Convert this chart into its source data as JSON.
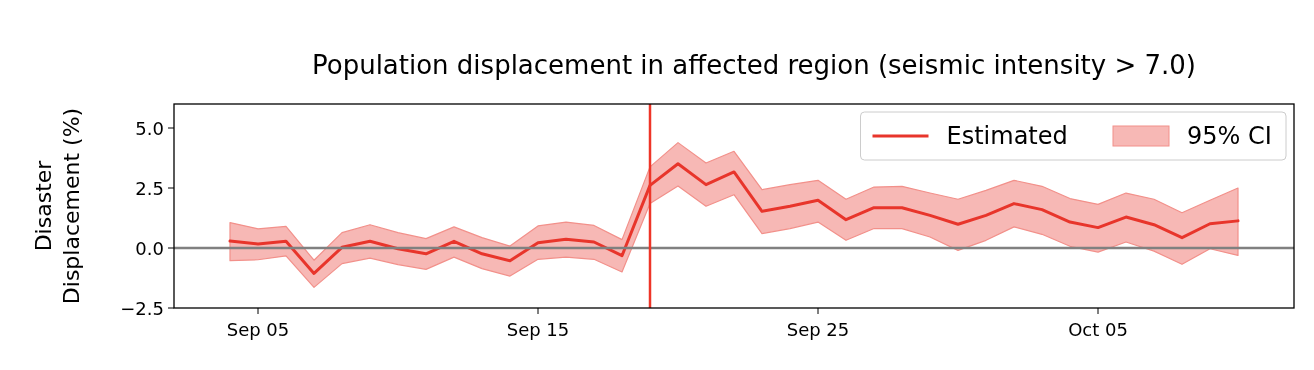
{
  "chart_data": {
    "type": "line",
    "title": "Population displacement in affected region (seismic intensity > 7.0)",
    "ylabel": "Disaster\nDisplacement (%)",
    "x": [
      "--09-04",
      "--09-05",
      "--09-06",
      "--09-07",
      "--09-08",
      "--09-09",
      "--09-10",
      "--09-11",
      "--09-12",
      "--09-13",
      "--09-14",
      "--09-15",
      "--09-16",
      "--09-17",
      "--09-18",
      "--09-19",
      "--09-20",
      "--09-21",
      "--09-22",
      "--09-23",
      "--09-24",
      "--09-25",
      "--09-26",
      "--09-27",
      "--09-28",
      "--09-29",
      "--09-30",
      "--10-01",
      "--10-02",
      "--10-03",
      "--10-04",
      "--10-05",
      "--10-06",
      "--10-07",
      "--10-08",
      "--10-09",
      "--10-10"
    ],
    "series": [
      {
        "name": "Estimated",
        "color": "#e8352b",
        "values": [
          0.29,
          0.17,
          0.28,
          -1.06,
          0.03,
          0.28,
          -0.03,
          -0.24,
          0.28,
          -0.24,
          -0.53,
          0.22,
          0.36,
          0.25,
          -0.32,
          2.61,
          3.51,
          2.64,
          3.17,
          1.53,
          1.74,
          1.99,
          1.18,
          1.68,
          1.68,
          1.36,
          0.99,
          1.36,
          1.85,
          1.6,
          1.08,
          0.85,
          1.29,
          0.97,
          0.43,
          1.01,
          1.13
        ],
        "lower": [
          -0.53,
          -0.49,
          -0.33,
          -1.64,
          -0.65,
          -0.42,
          -0.69,
          -0.89,
          -0.38,
          -0.86,
          -1.17,
          -0.47,
          -0.38,
          -0.47,
          -1.0,
          1.85,
          2.58,
          1.74,
          2.22,
          0.6,
          0.81,
          1.08,
          0.32,
          0.81,
          0.81,
          0.46,
          -0.1,
          0.32,
          0.88,
          0.57,
          0.07,
          -0.17,
          0.25,
          -0.13,
          -0.68,
          -0.03,
          -0.31
        ],
        "upper": [
          1.06,
          0.8,
          0.9,
          -0.51,
          0.64,
          0.97,
          0.64,
          0.39,
          0.88,
          0.43,
          0.08,
          0.92,
          1.08,
          0.94,
          0.35,
          3.38,
          4.39,
          3.54,
          4.03,
          2.43,
          2.64,
          2.82,
          2.03,
          2.54,
          2.57,
          2.29,
          2.03,
          2.4,
          2.82,
          2.57,
          2.06,
          1.82,
          2.29,
          2.03,
          1.47,
          1.99,
          2.5
        ]
      }
    ],
    "annotations": [
      "95% CI"
    ],
    "xlim": [
      "--09-02",
      "--10-12"
    ],
    "xticks": [
      {
        "value": "--09-05",
        "label": "Sep 05"
      },
      {
        "value": "--09-15",
        "label": "Sep 15"
      },
      {
        "value": "--09-25",
        "label": "Sep 25"
      },
      {
        "value": "--10-05",
        "label": "Oct 05"
      }
    ],
    "ylim": [
      -2.5,
      6
    ],
    "yticks": [
      {
        "value": -2.5,
        "label": "−2.5"
      },
      {
        "value": 0,
        "label": "0.0"
      },
      {
        "value": 2.5,
        "label": "2.5"
      },
      {
        "value": 5,
        "label": "5.0"
      }
    ],
    "ref_lines": [
      {
        "axis": "y",
        "value": 0,
        "color": "#808080"
      },
      {
        "axis": "x",
        "value": "--09-19",
        "color": "#ee3528"
      }
    ],
    "grid": false,
    "legend": "top right"
  }
}
